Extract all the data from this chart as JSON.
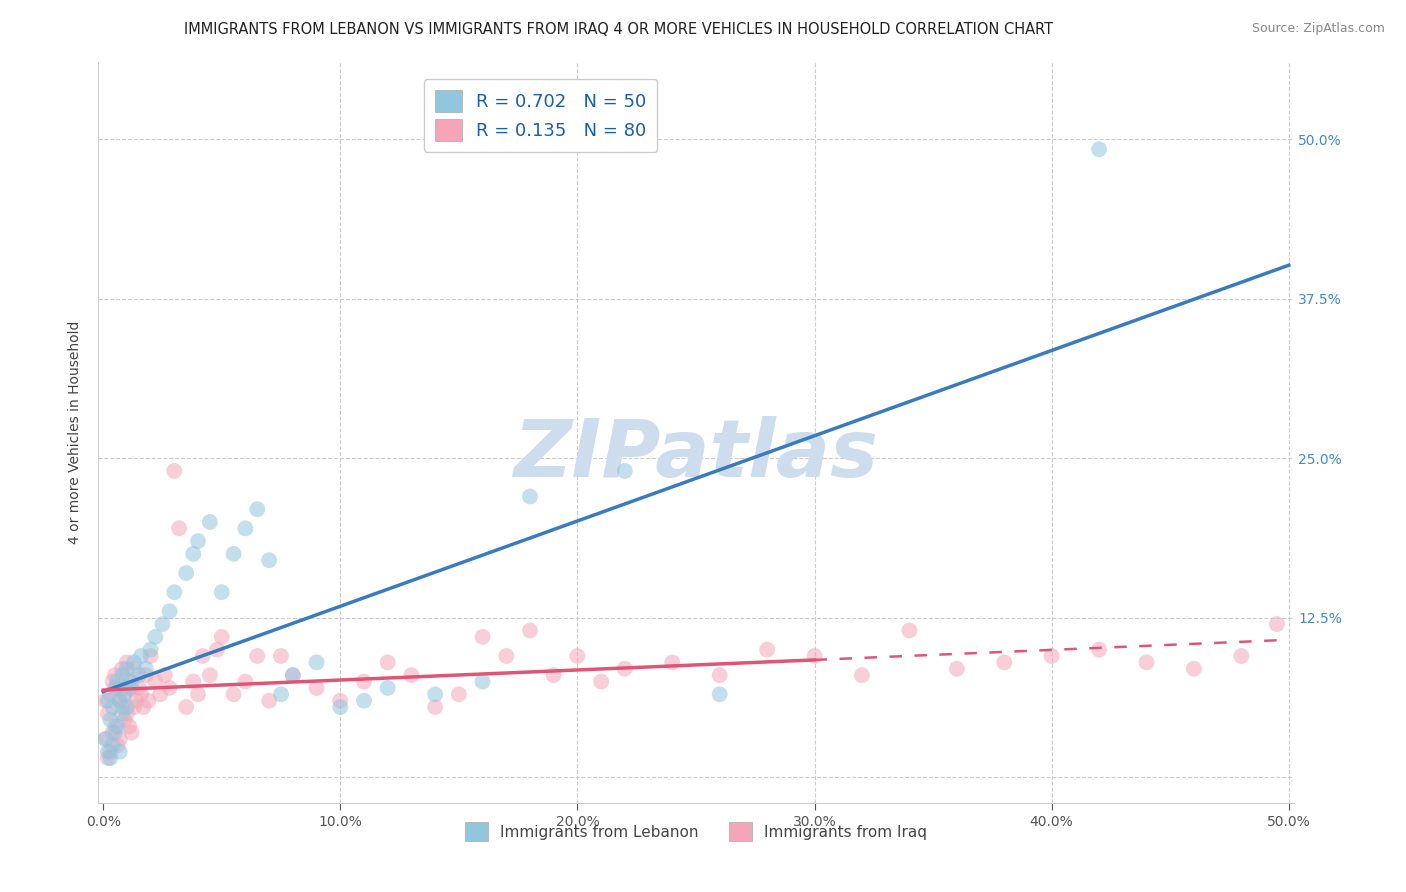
{
  "title": "IMMIGRANTS FROM LEBANON VS IMMIGRANTS FROM IRAQ 4 OR MORE VEHICLES IN HOUSEHOLD CORRELATION CHART",
  "source": "Source: ZipAtlas.com",
  "ylabel": "4 or more Vehicles in Household",
  "legend_label1": "Immigrants from Lebanon",
  "legend_label2": "Immigrants from Iraq",
  "R1": 0.702,
  "N1": 50,
  "R2": 0.135,
  "N2": 80,
  "xlim": [
    -0.002,
    0.502
  ],
  "ylim": [
    -0.02,
    0.56
  ],
  "xticks": [
    0.0,
    0.1,
    0.2,
    0.3,
    0.4,
    0.5
  ],
  "yticks": [
    0.0,
    0.125,
    0.25,
    0.375,
    0.5
  ],
  "xticklabels": [
    "0.0%",
    "10.0%",
    "20.0%",
    "30.0%",
    "40.0%",
    "50.0%"
  ],
  "right_yticklabels": [
    "",
    "12.5%",
    "25.0%",
    "37.5%",
    "50.0%"
  ],
  "color_lebanon": "#92c5de",
  "color_iraq": "#f4a6b8",
  "line_color_lebanon": "#3a7bbf",
  "line_color_iraq": "#e05577",
  "background_color": "#ffffff",
  "watermark": "ZIPatlas",
  "watermark_color": "#cddded",
  "title_fontsize": 10.5,
  "axis_label_fontsize": 10,
  "tick_fontsize": 10,
  "legend_fontsize": 13,
  "scatter_alpha": 0.55,
  "scatter_size": 130,
  "grid_yticks": [
    0.0,
    0.125,
    0.25,
    0.375,
    0.5
  ],
  "grid_xticks": [
    0.1,
    0.2,
    0.3,
    0.4,
    0.5
  ],
  "lebanon_x": [
    0.001,
    0.002,
    0.002,
    0.003,
    0.003,
    0.004,
    0.004,
    0.005,
    0.005,
    0.006,
    0.006,
    0.007,
    0.007,
    0.008,
    0.008,
    0.009,
    0.01,
    0.01,
    0.011,
    0.012,
    0.013,
    0.015,
    0.016,
    0.018,
    0.02,
    0.022,
    0.025,
    0.028,
    0.03,
    0.035,
    0.038,
    0.04,
    0.045,
    0.05,
    0.055,
    0.06,
    0.065,
    0.07,
    0.075,
    0.08,
    0.09,
    0.1,
    0.11,
    0.12,
    0.14,
    0.16,
    0.18,
    0.22,
    0.26,
    0.42
  ],
  "lebanon_y": [
    0.03,
    0.02,
    0.06,
    0.015,
    0.045,
    0.025,
    0.055,
    0.035,
    0.07,
    0.04,
    0.075,
    0.02,
    0.06,
    0.05,
    0.08,
    0.065,
    0.055,
    0.085,
    0.07,
    0.075,
    0.09,
    0.08,
    0.095,
    0.085,
    0.1,
    0.11,
    0.12,
    0.13,
    0.145,
    0.16,
    0.175,
    0.185,
    0.2,
    0.145,
    0.175,
    0.195,
    0.21,
    0.17,
    0.065,
    0.08,
    0.09,
    0.055,
    0.06,
    0.07,
    0.065,
    0.075,
    0.22,
    0.24,
    0.065,
    0.492
  ],
  "iraq_x": [
    0.001,
    0.001,
    0.002,
    0.002,
    0.003,
    0.003,
    0.004,
    0.004,
    0.005,
    0.005,
    0.006,
    0.006,
    0.007,
    0.007,
    0.008,
    0.008,
    0.009,
    0.009,
    0.01,
    0.01,
    0.011,
    0.011,
    0.012,
    0.012,
    0.013,
    0.013,
    0.014,
    0.015,
    0.016,
    0.017,
    0.018,
    0.019,
    0.02,
    0.022,
    0.024,
    0.026,
    0.028,
    0.03,
    0.032,
    0.035,
    0.038,
    0.04,
    0.042,
    0.045,
    0.048,
    0.05,
    0.055,
    0.06,
    0.065,
    0.07,
    0.075,
    0.08,
    0.09,
    0.1,
    0.11,
    0.12,
    0.13,
    0.14,
    0.15,
    0.16,
    0.17,
    0.18,
    0.19,
    0.2,
    0.21,
    0.22,
    0.24,
    0.26,
    0.28,
    0.3,
    0.32,
    0.34,
    0.36,
    0.38,
    0.4,
    0.42,
    0.44,
    0.46,
    0.48,
    0.495
  ],
  "iraq_y": [
    0.03,
    0.06,
    0.015,
    0.05,
    0.02,
    0.065,
    0.035,
    0.075,
    0.04,
    0.08,
    0.025,
    0.07,
    0.03,
    0.06,
    0.055,
    0.085,
    0.045,
    0.065,
    0.05,
    0.09,
    0.04,
    0.075,
    0.035,
    0.07,
    0.055,
    0.085,
    0.06,
    0.07,
    0.065,
    0.055,
    0.08,
    0.06,
    0.095,
    0.075,
    0.065,
    0.08,
    0.07,
    0.24,
    0.195,
    0.055,
    0.075,
    0.065,
    0.095,
    0.08,
    0.1,
    0.11,
    0.065,
    0.075,
    0.095,
    0.06,
    0.095,
    0.08,
    0.07,
    0.06,
    0.075,
    0.09,
    0.08,
    0.055,
    0.065,
    0.11,
    0.095,
    0.115,
    0.08,
    0.095,
    0.075,
    0.085,
    0.09,
    0.08,
    0.1,
    0.095,
    0.08,
    0.115,
    0.085,
    0.09,
    0.095,
    0.1,
    0.09,
    0.085,
    0.095,
    0.12
  ]
}
